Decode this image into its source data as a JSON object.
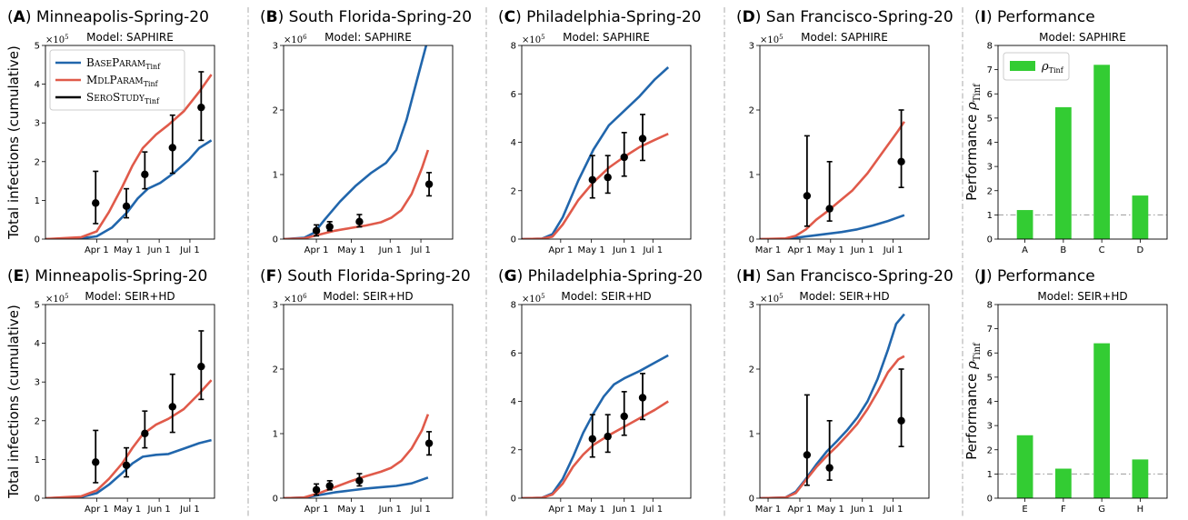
{
  "colors": {
    "base": "#2166ac",
    "mdl": "#e05a4a",
    "sero": "#000000",
    "bar": "#33cc33",
    "ref": "#999999"
  },
  "ylabel_total": "Total infections (cumulative)",
  "ylabel_perf_prefix": "Performance ",
  "ylabel_perf_sym": "ρ",
  "ylabel_perf_sub": "Tinf",
  "legend": {
    "base_a": "B",
    "base_b": "ASE",
    "base_c": "P",
    "base_d": "ARAM",
    "base_sub": "Tinf",
    "mdl_a": "M",
    "mdl_b": "DL",
    "mdl_c": "P",
    "mdl_d": "ARAM",
    "mdl_sub": "Tinf",
    "sero_a": "S",
    "sero_b": "ERO",
    "sero_c": "S",
    "sero_d": "TUDY",
    "sero_sub": "Tinf",
    "bar_sym": "ρ",
    "bar_sub": "Tinf"
  },
  "chart_data": [
    {
      "id": "A",
      "title": "Minneapolis-Spring-20",
      "type": "line",
      "model": "Model:  SAPHIRE",
      "sci": "5",
      "ylim": [
        0,
        5
      ],
      "yticks": [
        "0",
        "1",
        "2",
        "3",
        "4",
        "5"
      ],
      "xlim": [
        0,
        150
      ],
      "xticks": [
        {
          "v": 50,
          "l": "Apr 1"
        },
        {
          "v": 80,
          "l": "May 1"
        },
        {
          "v": 111,
          "l": "Jun 1"
        },
        {
          "v": 141,
          "l": "Jul 1"
        }
      ],
      "base": [
        [
          0,
          0
        ],
        [
          35,
          0.02
        ],
        [
          50,
          0.07
        ],
        [
          65,
          0.3
        ],
        [
          80,
          0.7
        ],
        [
          90,
          1.05
        ],
        [
          100,
          1.3
        ],
        [
          112,
          1.45
        ],
        [
          125,
          1.7
        ],
        [
          140,
          2.05
        ],
        [
          150,
          2.35
        ],
        [
          162,
          2.55
        ]
      ],
      "mdl": [
        [
          0,
          0
        ],
        [
          35,
          0.05
        ],
        [
          50,
          0.2
        ],
        [
          62,
          0.7
        ],
        [
          75,
          1.35
        ],
        [
          85,
          1.9
        ],
        [
          95,
          2.35
        ],
        [
          108,
          2.7
        ],
        [
          120,
          2.95
        ],
        [
          135,
          3.3
        ],
        [
          150,
          3.8
        ],
        [
          162,
          4.25
        ]
      ],
      "sero": [
        [
          49,
          0.93,
          0.4,
          1.75
        ],
        [
          79,
          0.85,
          0.55,
          1.3
        ],
        [
          97,
          1.67,
          1.3,
          2.25
        ],
        [
          124,
          2.36,
          1.7,
          3.2
        ],
        [
          152,
          3.4,
          2.55,
          4.32
        ]
      ],
      "legend": true
    },
    {
      "id": "B",
      "title": "South Florida-Spring-20",
      "type": "line",
      "model": "Model:  SAPHIRE",
      "sci": "6",
      "ylim": [
        0,
        3
      ],
      "yticks": [
        "0",
        "1",
        "2",
        "3"
      ],
      "xlim": [
        0,
        150
      ],
      "xticks": [
        {
          "v": 32,
          "l": "Apr 1"
        },
        {
          "v": 66,
          "l": "May 1"
        },
        {
          "v": 104,
          "l": "Jun 1"
        },
        {
          "v": 134,
          "l": "Jul 1"
        }
      ],
      "base": [
        [
          0,
          0
        ],
        [
          20,
          0.02
        ],
        [
          30,
          0.1
        ],
        [
          40,
          0.3
        ],
        [
          55,
          0.58
        ],
        [
          70,
          0.82
        ],
        [
          85,
          1.02
        ],
        [
          100,
          1.18
        ],
        [
          110,
          1.38
        ],
        [
          120,
          1.85
        ],
        [
          130,
          2.45
        ],
        [
          140,
          3.05
        ]
      ],
      "mdl": [
        [
          0,
          0
        ],
        [
          20,
          0.01
        ],
        [
          35,
          0.07
        ],
        [
          50,
          0.13
        ],
        [
          65,
          0.17
        ],
        [
          80,
          0.21
        ],
        [
          95,
          0.26
        ],
        [
          105,
          0.33
        ],
        [
          115,
          0.45
        ],
        [
          125,
          0.7
        ],
        [
          135,
          1.1
        ],
        [
          141,
          1.38
        ]
      ],
      "sero": [
        [
          32,
          0.13,
          0.05,
          0.22
        ],
        [
          45,
          0.19,
          0.13,
          0.27
        ],
        [
          74,
          0.27,
          0.19,
          0.38
        ],
        [
          142,
          0.85,
          0.67,
          1.03
        ]
      ],
      "legend": false
    },
    {
      "id": "C",
      "title": "Philadelphia-Spring-20",
      "type": "line",
      "model": "Model:  SAPHIRE",
      "sci": "5",
      "ylim": [
        0,
        8
      ],
      "yticks": [
        "0",
        "2",
        "4",
        "6",
        "8"
      ],
      "xlim": [
        0,
        150
      ],
      "xticks": [
        {
          "v": 38,
          "l": "Apr 1"
        },
        {
          "v": 68,
          "l": "May 1"
        },
        {
          "v": 100,
          "l": "Jun 1"
        },
        {
          "v": 128,
          "l": "Jul 1"
        }
      ],
      "base": [
        [
          0,
          0
        ],
        [
          20,
          0.02
        ],
        [
          30,
          0.2
        ],
        [
          40,
          0.9
        ],
        [
          55,
          2.4
        ],
        [
          70,
          3.7
        ],
        [
          85,
          4.7
        ],
        [
          100,
          5.3
        ],
        [
          115,
          5.9
        ],
        [
          130,
          6.6
        ],
        [
          143,
          7.1
        ]
      ],
      "mdl": [
        [
          0,
          0
        ],
        [
          20,
          0.02
        ],
        [
          30,
          0.1
        ],
        [
          40,
          0.6
        ],
        [
          55,
          1.6
        ],
        [
          70,
          2.35
        ],
        [
          85,
          2.95
        ],
        [
          100,
          3.4
        ],
        [
          115,
          3.8
        ],
        [
          130,
          4.1
        ],
        [
          143,
          4.35
        ]
      ],
      "sero": [
        [
          69,
          2.45,
          1.7,
          3.45
        ],
        [
          84,
          2.55,
          1.9,
          3.45
        ],
        [
          100,
          3.38,
          2.6,
          4.4
        ],
        [
          118,
          4.15,
          3.25,
          5.15
        ]
      ],
      "legend": false
    },
    {
      "id": "D",
      "title": "San Francisco-Spring-20",
      "type": "line",
      "model": "Model:  SAPHIRE",
      "sci": "5",
      "ylim": [
        0,
        3
      ],
      "yticks": [
        "0",
        "1",
        "2",
        "3"
      ],
      "xlim": [
        0,
        150
      ],
      "xticks": [
        {
          "v": 8,
          "l": "Mar 1"
        },
        {
          "v": 39,
          "l": "Apr 1"
        },
        {
          "v": 69,
          "l": "May 1"
        },
        {
          "v": 100,
          "l": "Jun 1"
        },
        {
          "v": 130,
          "l": "Jul 1"
        }
      ],
      "base": [
        [
          0,
          0
        ],
        [
          25,
          0.0
        ],
        [
          35,
          0.02
        ],
        [
          50,
          0.05
        ],
        [
          65,
          0.08
        ],
        [
          80,
          0.11
        ],
        [
          95,
          0.15
        ],
        [
          110,
          0.21
        ],
        [
          125,
          0.28
        ],
        [
          141,
          0.37
        ]
      ],
      "mdl": [
        [
          0,
          0
        ],
        [
          25,
          0.01
        ],
        [
          35,
          0.05
        ],
        [
          45,
          0.15
        ],
        [
          55,
          0.3
        ],
        [
          65,
          0.42
        ],
        [
          75,
          0.55
        ],
        [
          90,
          0.75
        ],
        [
          105,
          1.02
        ],
        [
          120,
          1.35
        ],
        [
          135,
          1.68
        ],
        [
          141,
          1.82
        ]
      ],
      "sero": [
        [
          46,
          0.67,
          0.2,
          1.6
        ],
        [
          68,
          0.47,
          0.28,
          1.2
        ],
        [
          138,
          1.2,
          0.8,
          2.0
        ]
      ],
      "legend": false
    },
    {
      "id": "E",
      "title": "Minneapolis-Spring-20",
      "type": "line",
      "model": "Model:  SEIR+HD",
      "sci": "5",
      "ylim": [
        0,
        5
      ],
      "yticks": [
        "0",
        "1",
        "2",
        "3",
        "4",
        "5"
      ],
      "xlim": [
        0,
        150
      ],
      "xticks": [
        {
          "v": 50,
          "l": "Apr 1"
        },
        {
          "v": 80,
          "l": "May 1"
        },
        {
          "v": 111,
          "l": "Jun 1"
        },
        {
          "v": 141,
          "l": "Jul 1"
        }
      ],
      "base": [
        [
          0,
          0
        ],
        [
          35,
          0.03
        ],
        [
          50,
          0.13
        ],
        [
          62,
          0.35
        ],
        [
          75,
          0.65
        ],
        [
          85,
          0.9
        ],
        [
          95,
          1.07
        ],
        [
          108,
          1.12
        ],
        [
          120,
          1.14
        ],
        [
          135,
          1.28
        ],
        [
          150,
          1.42
        ],
        [
          162,
          1.5
        ]
      ],
      "mdl": [
        [
          0,
          0
        ],
        [
          35,
          0.05
        ],
        [
          50,
          0.2
        ],
        [
          62,
          0.5
        ],
        [
          75,
          0.9
        ],
        [
          85,
          1.3
        ],
        [
          95,
          1.65
        ],
        [
          108,
          1.9
        ],
        [
          120,
          2.05
        ],
        [
          135,
          2.3
        ],
        [
          150,
          2.7
        ],
        [
          162,
          3.05
        ]
      ],
      "sero": [
        [
          49,
          0.93,
          0.4,
          1.75
        ],
        [
          79,
          0.85,
          0.55,
          1.3
        ],
        [
          97,
          1.67,
          1.3,
          2.25
        ],
        [
          124,
          2.36,
          1.7,
          3.2
        ],
        [
          152,
          3.4,
          2.55,
          4.32
        ]
      ],
      "legend": false
    },
    {
      "id": "F",
      "title": "South Florida-Spring-20",
      "type": "line",
      "model": "Model:  SEIR+HD",
      "sci": "6",
      "ylim": [
        0,
        3
      ],
      "yticks": [
        "0",
        "1",
        "2",
        "3"
      ],
      "xlim": [
        0,
        150
      ],
      "xticks": [
        {
          "v": 32,
          "l": "Apr 1"
        },
        {
          "v": 66,
          "l": "May 1"
        },
        {
          "v": 104,
          "l": "Jun 1"
        },
        {
          "v": 134,
          "l": "Jul 1"
        }
      ],
      "base": [
        [
          0,
          0
        ],
        [
          20,
          0.01
        ],
        [
          35,
          0.05
        ],
        [
          50,
          0.09
        ],
        [
          65,
          0.12
        ],
        [
          80,
          0.15
        ],
        [
          95,
          0.17
        ],
        [
          110,
          0.19
        ],
        [
          125,
          0.23
        ],
        [
          141,
          0.32
        ]
      ],
      "mdl": [
        [
          0,
          0
        ],
        [
          20,
          0.01
        ],
        [
          35,
          0.08
        ],
        [
          50,
          0.17
        ],
        [
          65,
          0.26
        ],
        [
          80,
          0.34
        ],
        [
          95,
          0.41
        ],
        [
          105,
          0.47
        ],
        [
          115,
          0.58
        ],
        [
          125,
          0.77
        ],
        [
          135,
          1.05
        ],
        [
          141,
          1.3
        ]
      ],
      "sero": [
        [
          32,
          0.13,
          0.05,
          0.22
        ],
        [
          45,
          0.19,
          0.13,
          0.27
        ],
        [
          74,
          0.27,
          0.19,
          0.38
        ],
        [
          142,
          0.85,
          0.67,
          1.03
        ]
      ],
      "legend": false
    },
    {
      "id": "G",
      "title": "Philadelphia-Spring-20",
      "type": "line",
      "model": "Model:  SEIR+HD",
      "sci": "5",
      "ylim": [
        0,
        8
      ],
      "yticks": [
        "0",
        "2",
        "4",
        "6",
        "8"
      ],
      "xlim": [
        0,
        150
      ],
      "xticks": [
        {
          "v": 38,
          "l": "Apr 1"
        },
        {
          "v": 68,
          "l": "May 1"
        },
        {
          "v": 100,
          "l": "Jun 1"
        },
        {
          "v": 128,
          "l": "Jul 1"
        }
      ],
      "base": [
        [
          0,
          0
        ],
        [
          20,
          0.02
        ],
        [
          30,
          0.2
        ],
        [
          40,
          0.8
        ],
        [
          50,
          1.7
        ],
        [
          60,
          2.7
        ],
        [
          70,
          3.5
        ],
        [
          80,
          4.2
        ],
        [
          90,
          4.7
        ],
        [
          100,
          4.95
        ],
        [
          115,
          5.25
        ],
        [
          130,
          5.6
        ],
        [
          143,
          5.9
        ]
      ],
      "mdl": [
        [
          0,
          0
        ],
        [
          20,
          0.02
        ],
        [
          30,
          0.15
        ],
        [
          40,
          0.6
        ],
        [
          50,
          1.3
        ],
        [
          60,
          1.8
        ],
        [
          70,
          2.2
        ],
        [
          85,
          2.6
        ],
        [
          100,
          2.95
        ],
        [
          115,
          3.3
        ],
        [
          130,
          3.65
        ],
        [
          143,
          4.0
        ]
      ],
      "sero": [
        [
          69,
          2.45,
          1.7,
          3.45
        ],
        [
          84,
          2.55,
          1.9,
          3.45
        ],
        [
          100,
          3.38,
          2.6,
          4.4
        ],
        [
          118,
          4.15,
          3.25,
          5.15
        ]
      ],
      "legend": false
    },
    {
      "id": "H",
      "title": "San Francisco-Spring-20",
      "type": "line",
      "model": "Model:  SEIR+HD",
      "sci": "5",
      "ylim": [
        0,
        3
      ],
      "yticks": [
        "0",
        "1",
        "2",
        "3"
      ],
      "xlim": [
        0,
        150
      ],
      "xticks": [
        {
          "v": 8,
          "l": "Mar 1"
        },
        {
          "v": 39,
          "l": "Apr 1"
        },
        {
          "v": 69,
          "l": "May 1"
        },
        {
          "v": 100,
          "l": "Jun 1"
        },
        {
          "v": 130,
          "l": "Jul 1"
        }
      ],
      "base": [
        [
          0,
          0
        ],
        [
          25,
          0.01
        ],
        [
          35,
          0.1
        ],
        [
          45,
          0.3
        ],
        [
          55,
          0.52
        ],
        [
          65,
          0.72
        ],
        [
          75,
          0.88
        ],
        [
          85,
          1.05
        ],
        [
          95,
          1.25
        ],
        [
          105,
          1.5
        ],
        [
          115,
          1.85
        ],
        [
          125,
          2.3
        ],
        [
          133,
          2.7
        ],
        [
          141,
          2.85
        ]
      ],
      "mdl": [
        [
          0,
          0
        ],
        [
          25,
          0.01
        ],
        [
          35,
          0.08
        ],
        [
          45,
          0.28
        ],
        [
          55,
          0.48
        ],
        [
          65,
          0.65
        ],
        [
          75,
          0.8
        ],
        [
          85,
          0.97
        ],
        [
          95,
          1.15
        ],
        [
          105,
          1.38
        ],
        [
          115,
          1.65
        ],
        [
          125,
          1.95
        ],
        [
          135,
          2.15
        ],
        [
          141,
          2.2
        ]
      ],
      "sero": [
        [
          46,
          0.67,
          0.2,
          1.6
        ],
        [
          68,
          0.47,
          0.28,
          1.2
        ],
        [
          138,
          1.2,
          0.8,
          2.0
        ]
      ],
      "legend": false
    },
    {
      "id": "I",
      "title": "Performance",
      "type": "bar",
      "model": "Model:  SAPHIRE",
      "ylim": [
        0,
        8
      ],
      "yticks": [
        "0",
        "1",
        "2",
        "3",
        "4",
        "5",
        "6",
        "7",
        "8"
      ],
      "categories": [
        "A",
        "B",
        "C",
        "D"
      ],
      "values": [
        1.2,
        5.45,
        7.2,
        1.8
      ],
      "reference": 1.0,
      "legend": true
    },
    {
      "id": "J",
      "title": "Performance",
      "type": "bar",
      "model": "Model:  SEIR+HD",
      "ylim": [
        0,
        8
      ],
      "yticks": [
        "0",
        "1",
        "2",
        "3",
        "4",
        "5",
        "6",
        "7",
        "8"
      ],
      "categories": [
        "E",
        "F",
        "G",
        "H"
      ],
      "values": [
        2.6,
        1.22,
        6.4,
        1.6
      ],
      "reference": 1.0,
      "legend": false
    }
  ]
}
